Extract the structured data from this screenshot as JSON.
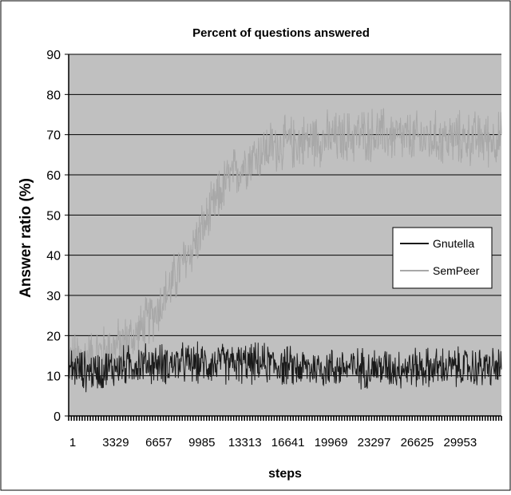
{
  "chart_data": {
    "type": "line",
    "title": "Percent of questions answered",
    "xlabel": "steps",
    "ylabel": "Answer ratio (%)",
    "ylim": [
      0,
      90
    ],
    "yticks": [
      0,
      10,
      20,
      30,
      40,
      50,
      60,
      70,
      80,
      90
    ],
    "xlim": [
      1,
      32000
    ],
    "xticks": [
      "1",
      "3329",
      "6657",
      "9985",
      "13313",
      "16641",
      "19969",
      "23297",
      "26625",
      "29953"
    ],
    "grid": true,
    "legend_position": "right",
    "plot_background": "#c0c0c0",
    "series": [
      {
        "name": "Gnutella",
        "color": "#1a1a1a",
        "x": [
          1,
          1600,
          3329,
          5000,
          6657,
          8300,
          9985,
          11600,
          13313,
          15000,
          16641,
          18300,
          19969,
          21600,
          23297,
          25000,
          26625,
          28300,
          29953,
          32000
        ],
        "values": [
          12,
          11,
          12,
          13,
          13,
          13,
          13,
          13,
          13,
          13,
          12,
          12,
          12,
          12,
          12,
          12,
          12,
          12,
          12,
          12
        ],
        "noise_amplitude": 6
      },
      {
        "name": "SemPeer",
        "color": "#a8a8a8",
        "x": [
          1,
          1600,
          3329,
          5000,
          6657,
          8300,
          9985,
          11600,
          13313,
          15000,
          16641,
          18300,
          19969,
          21600,
          23297,
          25000,
          26625,
          28300,
          29953,
          32000
        ],
        "values": [
          14,
          15,
          17,
          20,
          27,
          37,
          47,
          58,
          64,
          67,
          68,
          69,
          69,
          70,
          70,
          69,
          69,
          69,
          69,
          69
        ],
        "noise_amplitude": 8
      }
    ]
  }
}
